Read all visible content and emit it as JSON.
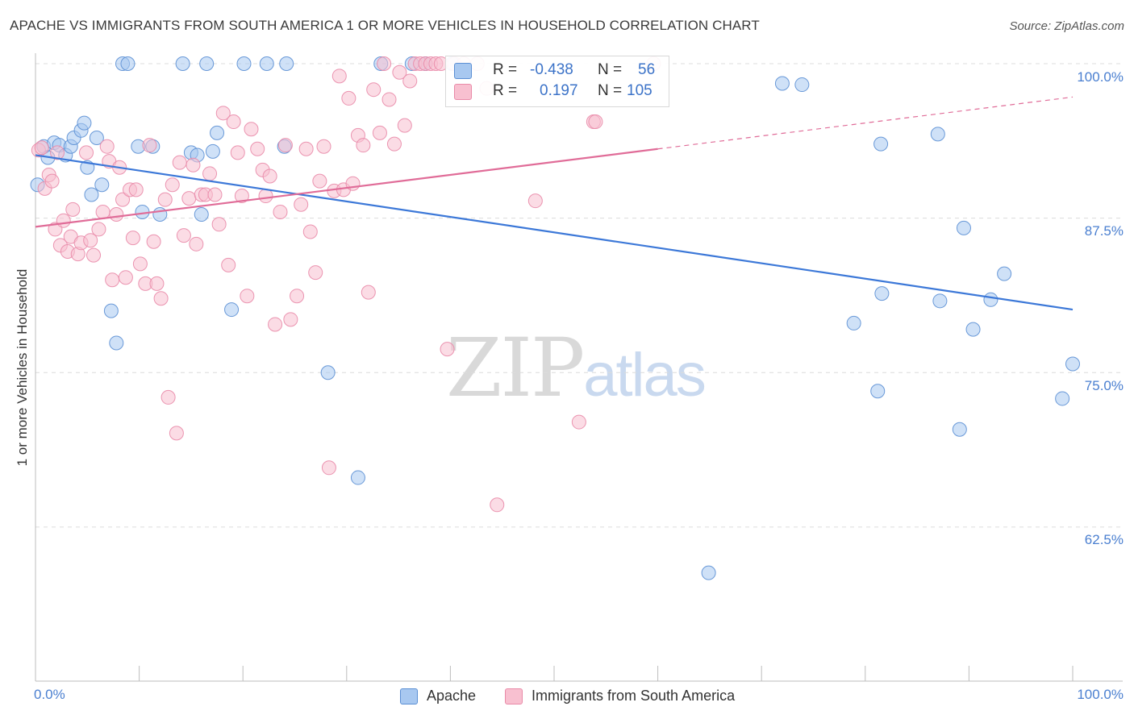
{
  "title": "APACHE VS IMMIGRANTS FROM SOUTH AMERICA 1 OR MORE VEHICLES IN HOUSEHOLD CORRELATION CHART",
  "source": "Source: ZipAtlas.com",
  "watermark": {
    "zip": "ZIP",
    "atlas": "atlas"
  },
  "stats": {
    "r_label": "R =",
    "n_label": "N =",
    "series": [
      {
        "name": "Apache",
        "r": "-0.438",
        "n": "56",
        "color": "#a8c8f0",
        "edge": "#5b8fd4"
      },
      {
        "name": "Immigrants from South America",
        "r": "0.197",
        "n": "105",
        "color": "#f8c0d0",
        "edge": "#e98aa8"
      }
    ]
  },
  "legend": [
    "Apache",
    "Immigrants from South America"
  ],
  "chart_data": {
    "type": "scatter",
    "title": "APACHE VS IMMIGRANTS FROM SOUTH AMERICA 1 OR MORE VEHICLES IN HOUSEHOLD CORRELATION CHART",
    "xlabel": "",
    "ylabel": "1 or more Vehicles in Household",
    "xlim": [
      0,
      100
    ],
    "ylim": [
      50,
      101
    ],
    "x_tick_labels": [
      "0.0%",
      "100.0%"
    ],
    "y_ticks": [
      62.5,
      75.0,
      87.5,
      100.0
    ],
    "y_tick_labels": [
      "62.5%",
      "75.0%",
      "87.5%",
      "100.0%"
    ],
    "grid": true,
    "legend_position": "bottom-center",
    "colors": {
      "apache": "#5b8fd4",
      "apache_fill": "#a8c8f0",
      "immigrants": "#e98aa8",
      "immigrants_fill": "#f8c0d0",
      "apache_trend": "#3c78d8",
      "immigrants_trend": "#e06c98"
    },
    "series": [
      {
        "name": "Apache",
        "trend": {
          "x": [
            0,
            100
          ],
          "y": [
            92.6,
            80.1
          ]
        },
        "points": [
          [
            0.2,
            90.2
          ],
          [
            0.8,
            93.3
          ],
          [
            1.2,
            92.4
          ],
          [
            1.8,
            93.6
          ],
          [
            2.3,
            93.4
          ],
          [
            2.9,
            92.6
          ],
          [
            3.4,
            93.3
          ],
          [
            3.7,
            94.0
          ],
          [
            4.4,
            94.6
          ],
          [
            4.7,
            95.2
          ],
          [
            5.0,
            91.6
          ],
          [
            5.4,
            89.4
          ],
          [
            5.9,
            94.0
          ],
          [
            6.4,
            90.2
          ],
          [
            7.3,
            80.0
          ],
          [
            7.8,
            77.4
          ],
          [
            8.4,
            100
          ],
          [
            8.9,
            100
          ],
          [
            9.9,
            93.3
          ],
          [
            10.3,
            88.0
          ],
          [
            11.3,
            93.3
          ],
          [
            12.0,
            87.8
          ],
          [
            14.2,
            100
          ],
          [
            15.0,
            92.8
          ],
          [
            15.6,
            92.6
          ],
          [
            16.0,
            87.8
          ],
          [
            16.5,
            100
          ],
          [
            17.1,
            92.9
          ],
          [
            17.5,
            94.4
          ],
          [
            18.9,
            80.1
          ],
          [
            20.1,
            100
          ],
          [
            22.3,
            100
          ],
          [
            24.0,
            93.3
          ],
          [
            24.2,
            100
          ],
          [
            28.2,
            75.0
          ],
          [
            31.1,
            66.5
          ],
          [
            33.3,
            100
          ],
          [
            36.3,
            100
          ],
          [
            37.6,
            100
          ],
          [
            40.2,
            100
          ],
          [
            64.9,
            58.8
          ],
          [
            72.0,
            98.4
          ],
          [
            73.9,
            98.3
          ],
          [
            78.9,
            79.0
          ],
          [
            81.2,
            73.5
          ],
          [
            81.5,
            93.5
          ],
          [
            81.6,
            81.4
          ],
          [
            87.0,
            94.3
          ],
          [
            87.2,
            80.8
          ],
          [
            89.1,
            70.4
          ],
          [
            89.5,
            86.7
          ],
          [
            90.4,
            78.5
          ],
          [
            92.1,
            80.9
          ],
          [
            93.4,
            83.0
          ],
          [
            99.0,
            72.9
          ],
          [
            100,
            75.7
          ]
        ]
      },
      {
        "name": "Immigrants from South America",
        "trend": {
          "x": [
            0,
            60
          ],
          "y": [
            86.8,
            93.1
          ]
        },
        "trend_extension": {
          "x": [
            60,
            100
          ],
          "y": [
            93.1,
            97.3
          ]
        },
        "points": [
          [
            0.3,
            93.0
          ],
          [
            0.6,
            93.2
          ],
          [
            0.9,
            89.9
          ],
          [
            1.3,
            91.0
          ],
          [
            1.6,
            90.5
          ],
          [
            1.9,
            86.6
          ],
          [
            2.1,
            92.8
          ],
          [
            2.4,
            85.3
          ],
          [
            2.7,
            87.3
          ],
          [
            3.1,
            84.8
          ],
          [
            3.4,
            86.0
          ],
          [
            3.6,
            88.2
          ],
          [
            4.1,
            84.6
          ],
          [
            4.4,
            85.5
          ],
          [
            4.9,
            92.8
          ],
          [
            5.3,
            85.7
          ],
          [
            5.6,
            84.5
          ],
          [
            6.1,
            86.6
          ],
          [
            6.5,
            88.0
          ],
          [
            6.9,
            93.3
          ],
          [
            7.1,
            92.1
          ],
          [
            7.4,
            82.5
          ],
          [
            7.8,
            87.8
          ],
          [
            8.1,
            91.6
          ],
          [
            8.4,
            89.0
          ],
          [
            8.7,
            82.7
          ],
          [
            9.1,
            89.8
          ],
          [
            9.4,
            85.9
          ],
          [
            9.7,
            89.8
          ],
          [
            10.1,
            83.8
          ],
          [
            10.6,
            82.2
          ],
          [
            11.0,
            93.4
          ],
          [
            11.4,
            85.6
          ],
          [
            11.7,
            82.2
          ],
          [
            12.1,
            81.0
          ],
          [
            12.5,
            89.0
          ],
          [
            12.8,
            73.0
          ],
          [
            13.2,
            90.2
          ],
          [
            13.6,
            70.1
          ],
          [
            13.9,
            92.0
          ],
          [
            14.3,
            86.1
          ],
          [
            14.8,
            89.1
          ],
          [
            15.2,
            91.8
          ],
          [
            15.5,
            85.4
          ],
          [
            16.0,
            89.4
          ],
          [
            16.4,
            89.4
          ],
          [
            16.8,
            91.1
          ],
          [
            17.3,
            89.4
          ],
          [
            17.7,
            87.0
          ],
          [
            18.1,
            96.0
          ],
          [
            18.6,
            83.7
          ],
          [
            19.1,
            95.3
          ],
          [
            19.5,
            92.8
          ],
          [
            19.9,
            89.3
          ],
          [
            20.4,
            81.2
          ],
          [
            20.8,
            94.7
          ],
          [
            21.4,
            93.1
          ],
          [
            21.9,
            91.4
          ],
          [
            22.2,
            89.3
          ],
          [
            22.6,
            90.9
          ],
          [
            23.1,
            78.9
          ],
          [
            23.6,
            88.0
          ],
          [
            24.1,
            93.4
          ],
          [
            24.6,
            79.3
          ],
          [
            25.2,
            81.2
          ],
          [
            25.6,
            88.6
          ],
          [
            26.1,
            93.1
          ],
          [
            26.5,
            86.4
          ],
          [
            27.0,
            83.1
          ],
          [
            27.4,
            90.5
          ],
          [
            27.8,
            93.3
          ],
          [
            28.3,
            67.3
          ],
          [
            28.8,
            89.7
          ],
          [
            29.3,
            99.0
          ],
          [
            29.7,
            89.8
          ],
          [
            30.2,
            97.2
          ],
          [
            30.6,
            90.3
          ],
          [
            31.1,
            94.2
          ],
          [
            31.6,
            93.4
          ],
          [
            32.1,
            81.5
          ],
          [
            32.6,
            97.9
          ],
          [
            33.2,
            94.4
          ],
          [
            33.6,
            100
          ],
          [
            34.1,
            97.1
          ],
          [
            34.6,
            93.5
          ],
          [
            35.1,
            99.3
          ],
          [
            35.6,
            95.0
          ],
          [
            36.1,
            98.6
          ],
          [
            36.6,
            100
          ],
          [
            37.1,
            100
          ],
          [
            37.6,
            100
          ],
          [
            38.1,
            100
          ],
          [
            38.6,
            100
          ],
          [
            39.1,
            100
          ],
          [
            39.7,
            76.9
          ],
          [
            40.4,
            100
          ],
          [
            41.3,
            100
          ],
          [
            42.6,
            100
          ],
          [
            43.5,
            98.0
          ],
          [
            44.5,
            64.3
          ],
          [
            48.2,
            88.9
          ],
          [
            52.4,
            71.0
          ],
          [
            53.8,
            95.3
          ],
          [
            54.0,
            95.3
          ],
          [
            59.6,
            100
          ]
        ]
      }
    ]
  }
}
